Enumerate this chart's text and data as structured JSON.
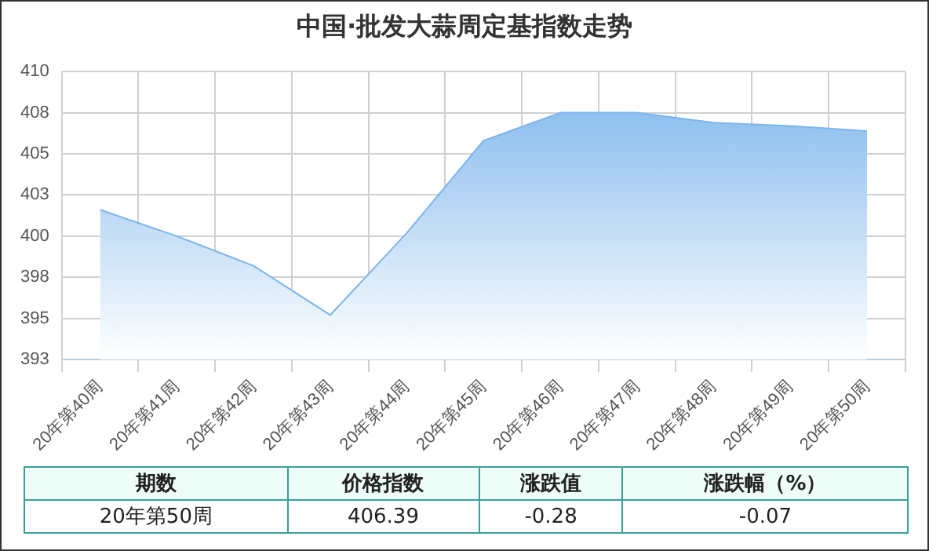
{
  "chart_data": {
    "type": "area",
    "title": "中国·批发大蒜周定基指数走势",
    "categories": [
      "20年第40周",
      "20年第41周",
      "20年第42周",
      "20年第43周",
      "20年第44周",
      "20年第45周",
      "20年第46周",
      "20年第47周",
      "20年第48周",
      "20年第49周",
      "20年第50周"
    ],
    "series": [
      {
        "color": "#7cb5ec",
        "values": [
          401.6,
          400.0,
          398.2,
          395.2,
          400.2,
          405.8,
          407.5,
          407.5,
          406.9,
          406.7,
          406.39
        ]
      }
    ],
    "ylim": [
      392.5,
      410
    ],
    "yticks": [
      {
        "value": 392.5,
        "label": "393"
      },
      395,
      {
        "value": 397.5,
        "label": "398"
      },
      400,
      {
        "value": 402.5,
        "label": "403"
      },
      405,
      {
        "value": 407.5,
        "label": "408"
      },
      410
    ],
    "grid": true,
    "legend": false,
    "annotations": [
      "期数",
      "价格指数",
      "涨跌值",
      "涨跌幅（%）",
      "20年第50周",
      "406.39",
      "-0.28",
      "-0.07"
    ]
  }
}
